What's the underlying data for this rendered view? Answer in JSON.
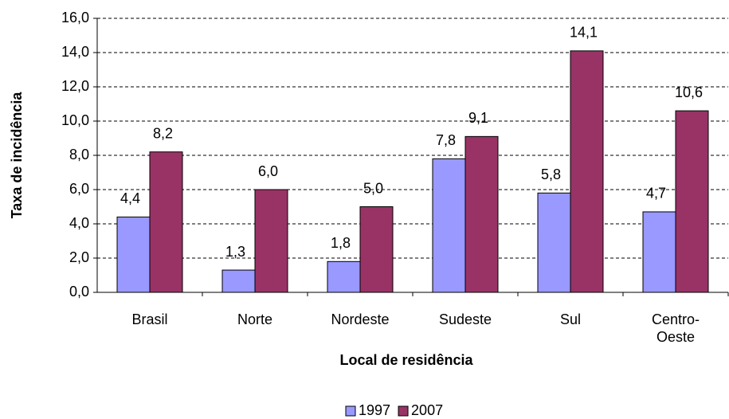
{
  "chart_data": {
    "type": "bar",
    "x_label": "Local de residência",
    "y_label": "Taxa de incidência",
    "categories": [
      "Brasil",
      "Norte",
      "Nordeste",
      "Sudeste",
      "Sul",
      "Centro-Oeste"
    ],
    "series": [
      {
        "name": "1997",
        "color": "#9999ff",
        "values": [
          4.4,
          1.3,
          1.8,
          7.8,
          5.8,
          4.7
        ],
        "value_labels": [
          "4,4",
          "1,3",
          "1,8",
          "7,8",
          "5,8",
          "4,7"
        ]
      },
      {
        "name": "2007",
        "color": "#993366",
        "values": [
          8.2,
          6.0,
          5.0,
          9.1,
          14.1,
          10.6
        ],
        "value_labels": [
          "8,2",
          "6,0",
          "5,0",
          "9,1",
          "14,1",
          "10,6"
        ]
      }
    ],
    "ylim": [
      0,
      16
    ],
    "yticks": [
      {
        "value": 0,
        "label": "0,0"
      },
      {
        "value": 2,
        "label": "2,0"
      },
      {
        "value": 4,
        "label": "4,0"
      },
      {
        "value": 6,
        "label": "6,0"
      },
      {
        "value": 8,
        "label": "8,0"
      },
      {
        "value": 10,
        "label": "10,0"
      },
      {
        "value": 12,
        "label": "12,0"
      },
      {
        "value": 14,
        "label": "14,0"
      },
      {
        "value": 16,
        "label": "16,0"
      }
    ],
    "grid": true,
    "legend": "bottom"
  }
}
